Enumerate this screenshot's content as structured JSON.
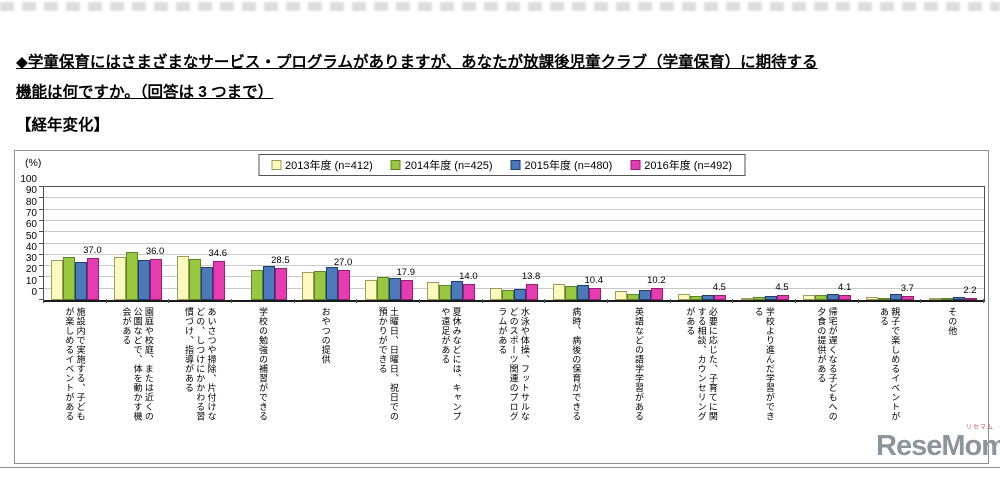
{
  "page": {
    "title_line1": "◆学童保育にはさまざまなサービス・プログラムがありますが、あなたが放課後児童クラブ（学童保育）に期待する",
    "title_line2": "機能は何ですか。（回答は 3 つまで）",
    "section_label": "【経年変化】",
    "watermark": "ReseMom",
    "watermark_small": "リセマム"
  },
  "chart_data": {
    "type": "bar",
    "unit_label": "(%)",
    "ylim": [
      0,
      100
    ],
    "yticks": [
      0,
      10,
      20,
      30,
      40,
      50,
      60,
      70,
      80,
      90,
      100
    ],
    "grid": true,
    "legend_position": "top-center",
    "categories": [
      "施設内で実施する、子どもが楽しめるイベントがある",
      "園庭や校庭、または近くの公園などで、体を動かす機会がある",
      "あいさつや掃除、片付けなどの、しつけにかかわる習慣づけ、指導がある",
      "学校の勉強の補習ができる",
      "おやつの提供",
      "土曜日、日曜日、祝日での預かりができる",
      "夏休みなどには、キャンプや遠足がある",
      "水泳や体操、フットサルなどのスポーツ関連のプログラムがある",
      "病時、病後の保育ができる",
      "英語などの語学学習がある",
      "必要に応じた、子育てに関する相談、カウンセリングがある",
      "学校より進んだ学習ができる",
      "帰宅が遅くなる子どもへの夕食の提供がある",
      "親子で楽しめるイベントがある",
      "その他"
    ],
    "series": [
      {
        "name": "2013年度 (n=412)",
        "color": "#FBF9BD",
        "border_color": "#9C9C5E",
        "values": [
          35.5,
          38.5,
          39.0,
          null,
          25.0,
          18.0,
          16.0,
          10.5,
          14.0,
          8.0,
          5.0,
          1.5,
          4.0,
          3.0,
          1.0
        ]
      },
      {
        "name": "2014年度 (n=425)",
        "color": "#97C83F",
        "border_color": "#5F8428",
        "values": [
          38.0,
          42.5,
          36.5,
          27.0,
          26.0,
          20.0,
          13.5,
          9.0,
          12.0,
          5.0,
          3.5,
          3.0,
          4.5,
          2.0,
          1.0
        ]
      },
      {
        "name": "2015年度 (n=480)",
        "color": "#4C79BC",
        "border_color": "#1F3E6E",
        "values": [
          34.0,
          35.5,
          29.5,
          30.0,
          29.0,
          19.5,
          17.0,
          9.5,
          13.5,
          9.0,
          4.0,
          3.5,
          5.5,
          5.0,
          2.5
        ]
      },
      {
        "name": "2016年度 (n=492)",
        "color": "#E73BB1",
        "border_color": "#97206F",
        "values": [
          37.0,
          36.0,
          34.6,
          28.5,
          27.0,
          17.9,
          14.0,
          13.8,
          10.4,
          10.2,
          4.5,
          4.5,
          4.1,
          3.7,
          2.2
        ]
      }
    ],
    "value_labels": [
      "37.0",
      "36.0",
      "34.6",
      "28.5",
      "27.0",
      "17.9",
      "14.0",
      "13.8",
      "10.4",
      "10.2",
      "4.5",
      "4.5",
      "4.1",
      "3.7",
      "2.2"
    ],
    "value_labels_series": "2016年度 (n=492)"
  }
}
